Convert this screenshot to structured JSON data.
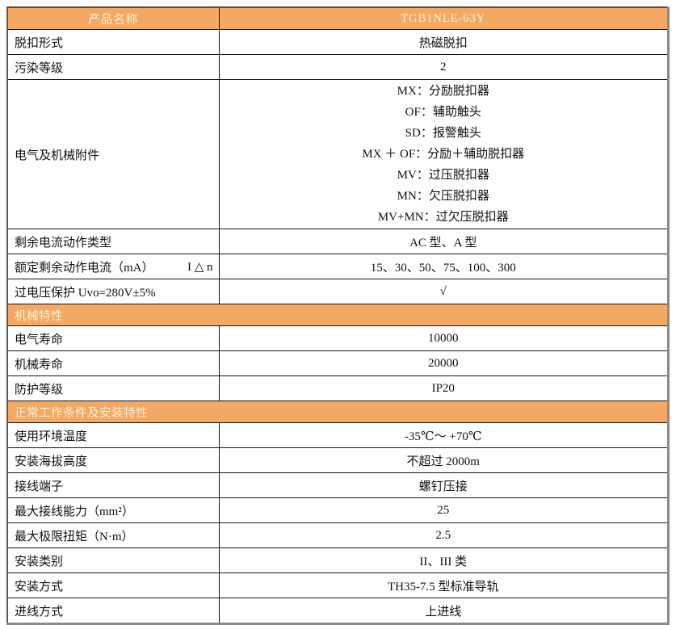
{
  "table": {
    "colors": {
      "accent_orange": "#F3A963",
      "header_text": "#FBF0DD",
      "grid_border": "#141414",
      "body_text": "#111111"
    },
    "header": {
      "product_name_label": "产品名称",
      "model_value": "TGB1NLE-63Y"
    },
    "rows": [
      {
        "type": "row",
        "label": "脱扣形式",
        "value": "热磁脱扣"
      },
      {
        "type": "row",
        "label": "污染等级",
        "value": "2"
      },
      {
        "type": "row",
        "label": "电气及机械附件",
        "value_lines": [
          "MX：分励脱扣器",
          "OF：辅助触头",
          "SD：报警触头",
          "MX ＋ OF：分励＋辅助脱扣器",
          "MV：过压脱扣器",
          "MN：欠压脱扣器",
          "MV+MN：过欠压脱扣器"
        ]
      },
      {
        "type": "row",
        "label": "剩余电流动作类型",
        "value": "AC 型、A 型"
      },
      {
        "type": "row",
        "label": "额定剩余动作电流（mA）",
        "label_suffix": "I △ n",
        "value": "15、30、50、75、100、300"
      },
      {
        "type": "row",
        "label": "过电压保护 Uvo=280V±5%",
        "value": "√"
      },
      {
        "type": "section",
        "label": "机械特性"
      },
      {
        "type": "row",
        "label": "电气寿命",
        "value": "10000"
      },
      {
        "type": "row",
        "label": "机械寿命",
        "value": "20000"
      },
      {
        "type": "row",
        "label": "防护等级",
        "value": "IP20"
      },
      {
        "type": "section",
        "label": "正常工作条件及安装特性"
      },
      {
        "type": "row",
        "label": "使用环境温度",
        "value": "-35℃～ +70℃"
      },
      {
        "type": "row",
        "label": "安装海拔高度",
        "value": "不超过 2000m"
      },
      {
        "type": "row",
        "label": "接线端子",
        "value": "螺钉压接"
      },
      {
        "type": "row",
        "label": "最大接线能力（mm²）",
        "value": "25"
      },
      {
        "type": "row",
        "label": "最大极限扭矩（N·m）",
        "value": "2.5"
      },
      {
        "type": "row",
        "label": "安装类别",
        "value": "II、III 类"
      },
      {
        "type": "row",
        "label": "安装方式",
        "value": "TH35-7.5 型标准导轨"
      },
      {
        "type": "row",
        "label": "进线方式",
        "value": "上进线"
      }
    ]
  }
}
